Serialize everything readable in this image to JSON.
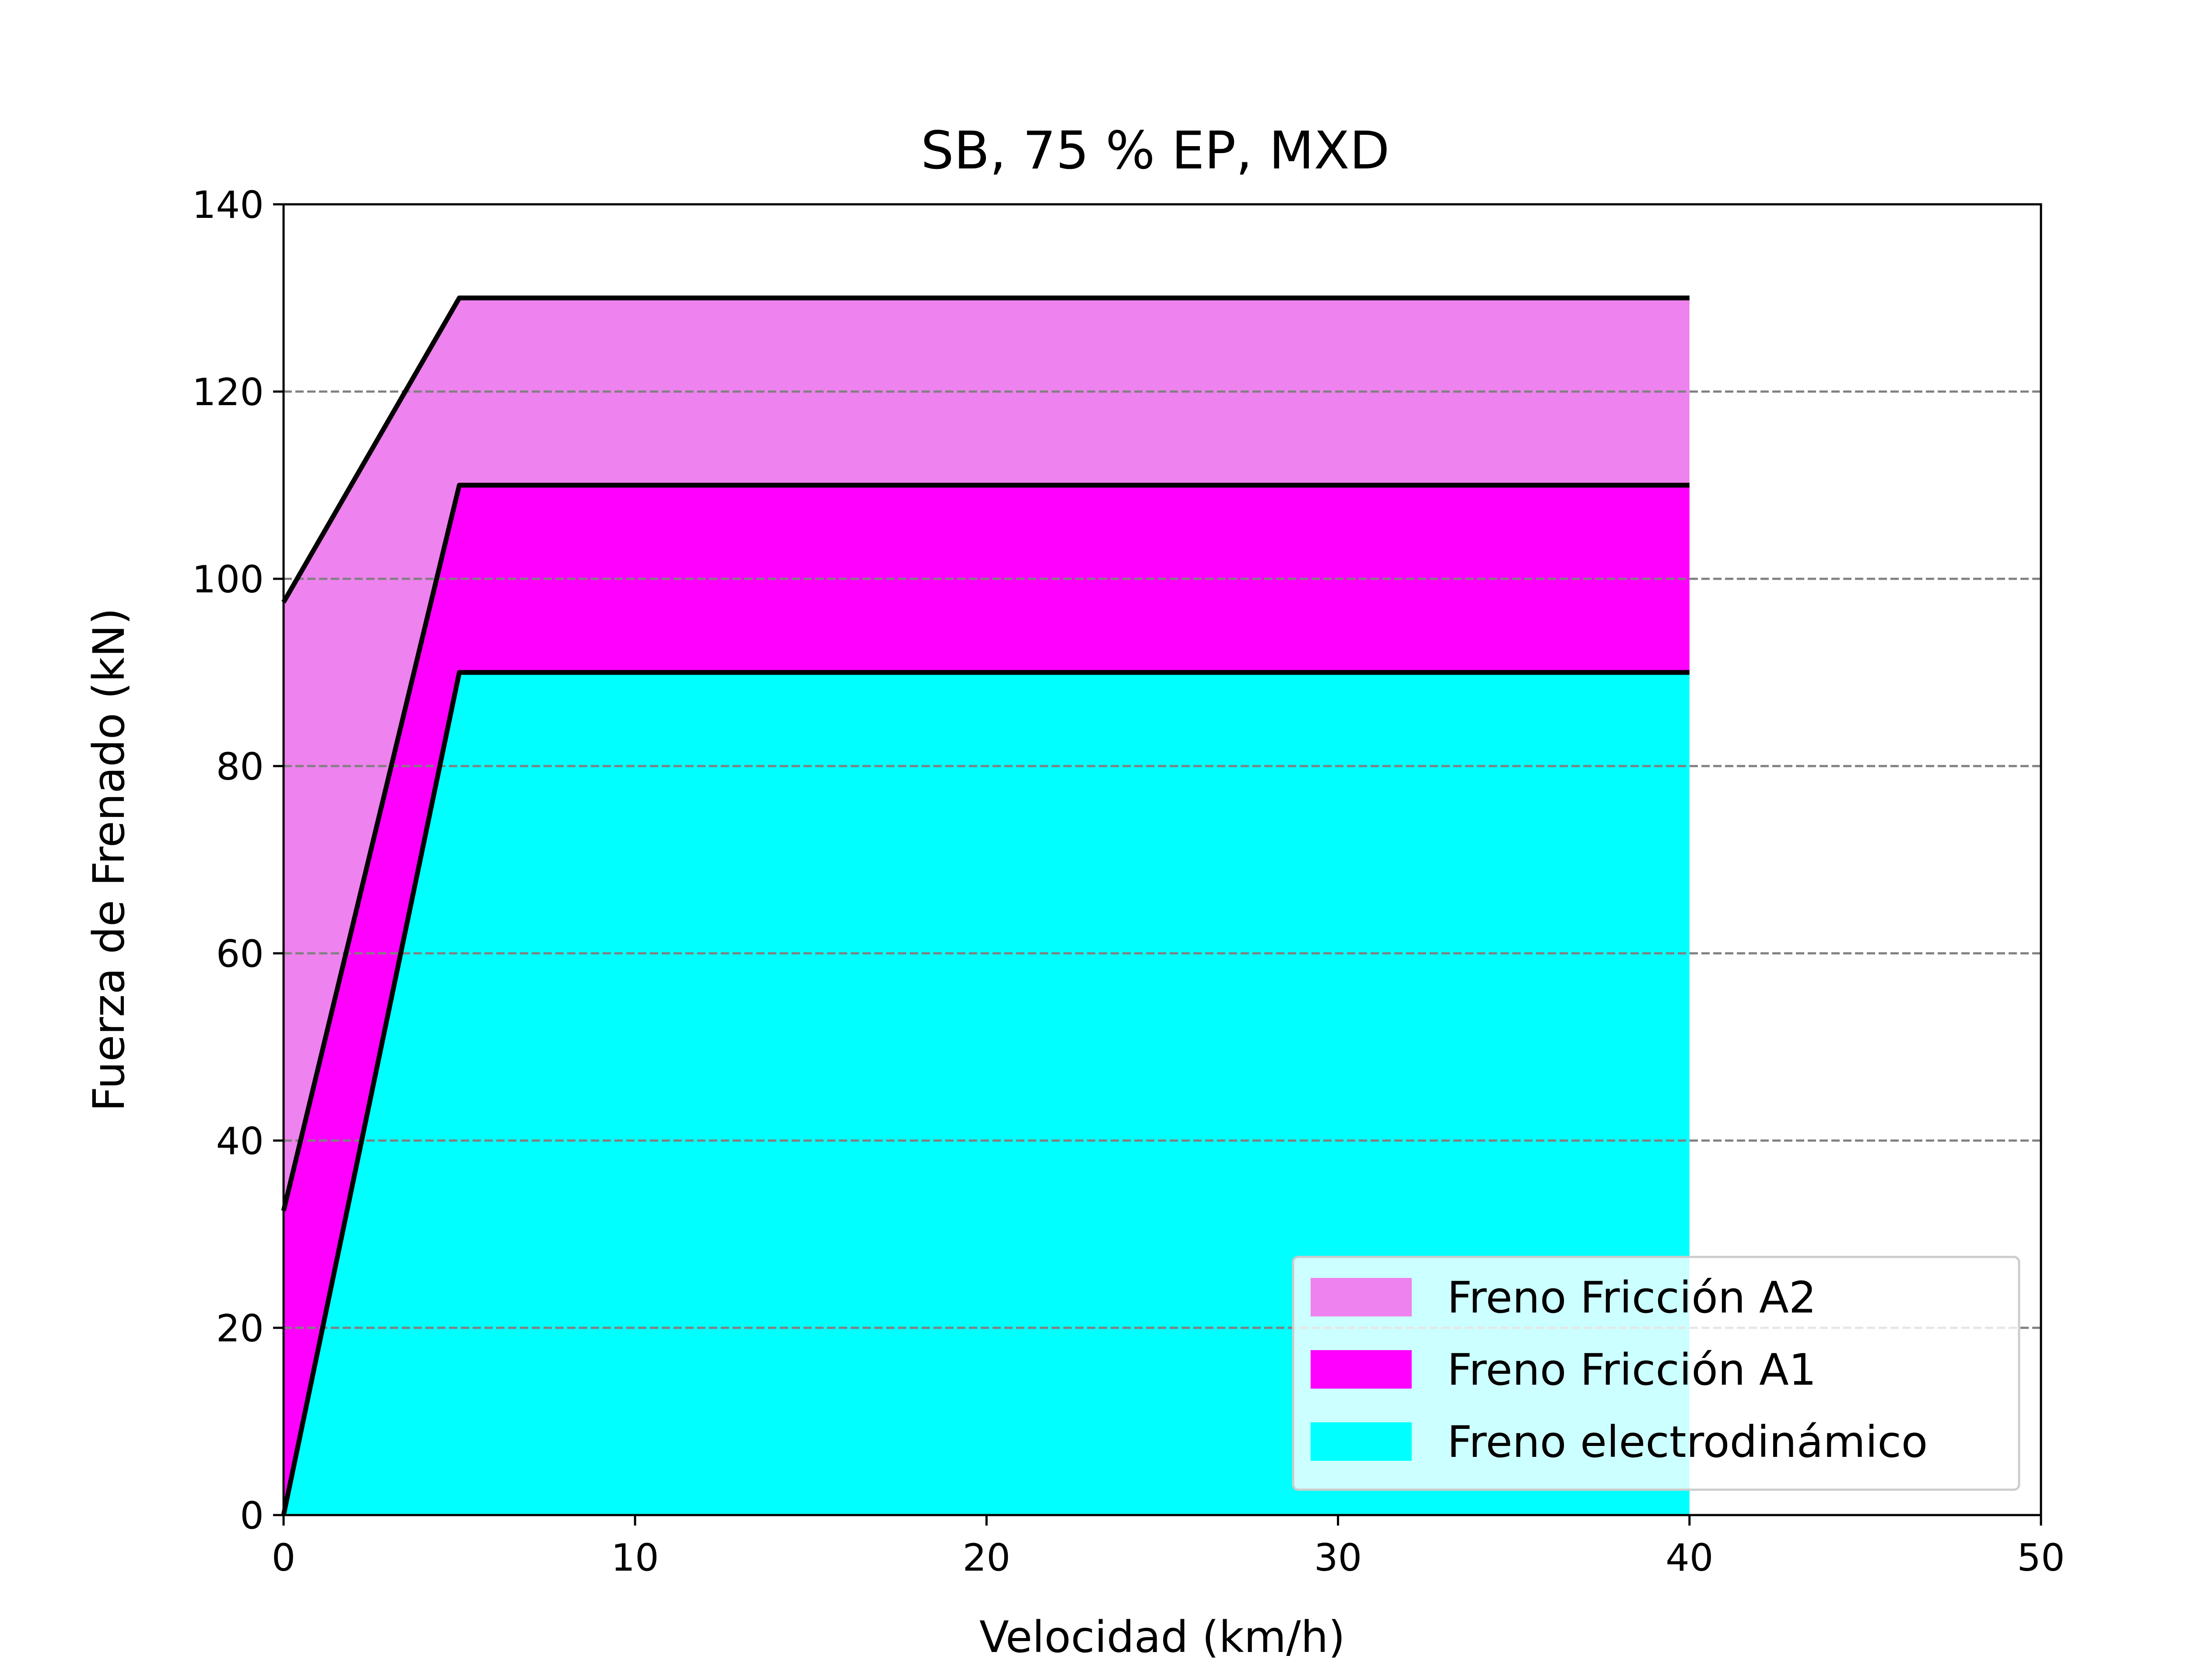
{
  "chart_data": {
    "type": "area",
    "title": "SB, 75 % EP, MXD",
    "xlabel": "Velocidad (km/h)",
    "ylabel": "Fuerza de Frenado (kN)",
    "xlim": [
      0,
      50
    ],
    "ylim": [
      0,
      140
    ],
    "xticks": [
      0,
      10,
      20,
      30,
      40,
      50
    ],
    "yticks": [
      0,
      20,
      40,
      60,
      80,
      100,
      120,
      140
    ],
    "grid": "horizontal dashed",
    "legend_position": "lower right",
    "stacked": true,
    "x": [
      0,
      5,
      40
    ],
    "series": [
      {
        "name": "Freno electrodinámico",
        "color": "#00ffff",
        "values": [
          0,
          90,
          90
        ],
        "cumulative": [
          0,
          90,
          90
        ]
      },
      {
        "name": "Freno Fricción A1",
        "color": "#ff00ff",
        "values": [
          32.5,
          20,
          20
        ],
        "cumulative": [
          32.5,
          110,
          110
        ]
      },
      {
        "name": "Freno Fricción A2",
        "color": "#ee82ee",
        "values": [
          65,
          20,
          20
        ],
        "cumulative": [
          97.5,
          130,
          130
        ]
      }
    ],
    "legend_order": [
      "Freno Fricción A2",
      "Freno Fricción A1",
      "Freno electrodinámico"
    ]
  }
}
